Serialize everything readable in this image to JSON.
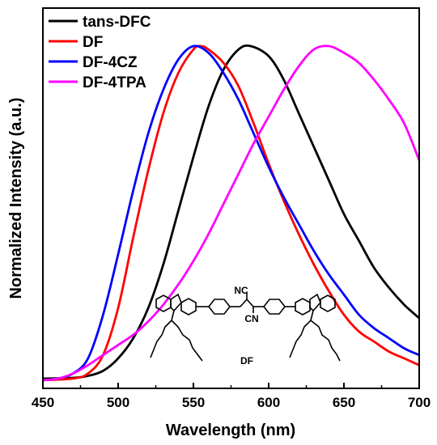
{
  "chart_data": {
    "type": "line",
    "title": "",
    "xlabel": "Wavelength (nm)",
    "ylabel": "Normalized Intensity (a.u.)",
    "xlim": [
      450,
      700
    ],
    "ylim": [
      0,
      1.0
    ],
    "x_ticks": [
      450,
      500,
      550,
      600,
      650,
      700
    ],
    "grid": false,
    "legend_position": "top-left",
    "series": [
      {
        "name": "tans-DFC",
        "color": "#000000",
        "points": [
          [
            450,
            0.01
          ],
          [
            470,
            0.012
          ],
          [
            480,
            0.018
          ],
          [
            490,
            0.033
          ],
          [
            500,
            0.07
          ],
          [
            510,
            0.13
          ],
          [
            520,
            0.22
          ],
          [
            530,
            0.35
          ],
          [
            540,
            0.51
          ],
          [
            550,
            0.67
          ],
          [
            560,
            0.82
          ],
          [
            570,
            0.93
          ],
          [
            580,
            0.99
          ],
          [
            588,
            1.0
          ],
          [
            600,
            0.97
          ],
          [
            610,
            0.9
          ],
          [
            620,
            0.8
          ],
          [
            630,
            0.7
          ],
          [
            640,
            0.6
          ],
          [
            650,
            0.5
          ],
          [
            660,
            0.42
          ],
          [
            670,
            0.34
          ],
          [
            680,
            0.28
          ],
          [
            690,
            0.23
          ],
          [
            700,
            0.19
          ]
        ]
      },
      {
        "name": "DF",
        "color": "#ff0000",
        "points": [
          [
            450,
            0.005
          ],
          [
            470,
            0.01
          ],
          [
            480,
            0.025
          ],
          [
            490,
            0.08
          ],
          [
            500,
            0.22
          ],
          [
            510,
            0.43
          ],
          [
            520,
            0.63
          ],
          [
            530,
            0.8
          ],
          [
            540,
            0.92
          ],
          [
            550,
            0.99
          ],
          [
            555,
            1.0
          ],
          [
            560,
            0.99
          ],
          [
            570,
            0.95
          ],
          [
            580,
            0.88
          ],
          [
            590,
            0.77
          ],
          [
            600,
            0.65
          ],
          [
            610,
            0.54
          ],
          [
            620,
            0.44
          ],
          [
            630,
            0.35
          ],
          [
            640,
            0.27
          ],
          [
            650,
            0.2
          ],
          [
            660,
            0.15
          ],
          [
            670,
            0.12
          ],
          [
            680,
            0.09
          ],
          [
            690,
            0.07
          ],
          [
            700,
            0.05
          ]
        ]
      },
      {
        "name": "DF-4CZ",
        "color": "#0000ff",
        "points": [
          [
            450,
            0.005
          ],
          [
            460,
            0.01
          ],
          [
            470,
            0.025
          ],
          [
            480,
            0.07
          ],
          [
            490,
            0.2
          ],
          [
            500,
            0.38
          ],
          [
            510,
            0.57
          ],
          [
            520,
            0.74
          ],
          [
            530,
            0.87
          ],
          [
            540,
            0.96
          ],
          [
            550,
            1.0
          ],
          [
            560,
            0.98
          ],
          [
            570,
            0.92
          ],
          [
            580,
            0.84
          ],
          [
            590,
            0.74
          ],
          [
            600,
            0.64
          ],
          [
            610,
            0.55
          ],
          [
            620,
            0.47
          ],
          [
            630,
            0.39
          ],
          [
            640,
            0.32
          ],
          [
            650,
            0.26
          ],
          [
            660,
            0.2
          ],
          [
            670,
            0.16
          ],
          [
            680,
            0.13
          ],
          [
            690,
            0.1
          ],
          [
            700,
            0.08
          ]
        ]
      },
      {
        "name": "DF-4TPA",
        "color": "#ff00ff",
        "points": [
          [
            450,
            0.005
          ],
          [
            460,
            0.01
          ],
          [
            470,
            0.025
          ],
          [
            480,
            0.05
          ],
          [
            490,
            0.08
          ],
          [
            500,
            0.11
          ],
          [
            510,
            0.14
          ],
          [
            520,
            0.18
          ],
          [
            530,
            0.23
          ],
          [
            540,
            0.29
          ],
          [
            550,
            0.36
          ],
          [
            560,
            0.44
          ],
          [
            570,
            0.53
          ],
          [
            580,
            0.62
          ],
          [
            590,
            0.71
          ],
          [
            600,
            0.79
          ],
          [
            610,
            0.87
          ],
          [
            620,
            0.94
          ],
          [
            630,
            0.99
          ],
          [
            640,
            1.0
          ],
          [
            650,
            0.98
          ],
          [
            660,
            0.95
          ],
          [
            670,
            0.9
          ],
          [
            680,
            0.84
          ],
          [
            690,
            0.77
          ],
          [
            700,
            0.66
          ]
        ]
      }
    ],
    "annotations": [
      {
        "text": "DF",
        "target": "inset-structure-caption"
      },
      {
        "text": "NC",
        "target": "structure-label"
      },
      {
        "text": "CN",
        "target": "structure-label"
      }
    ]
  }
}
